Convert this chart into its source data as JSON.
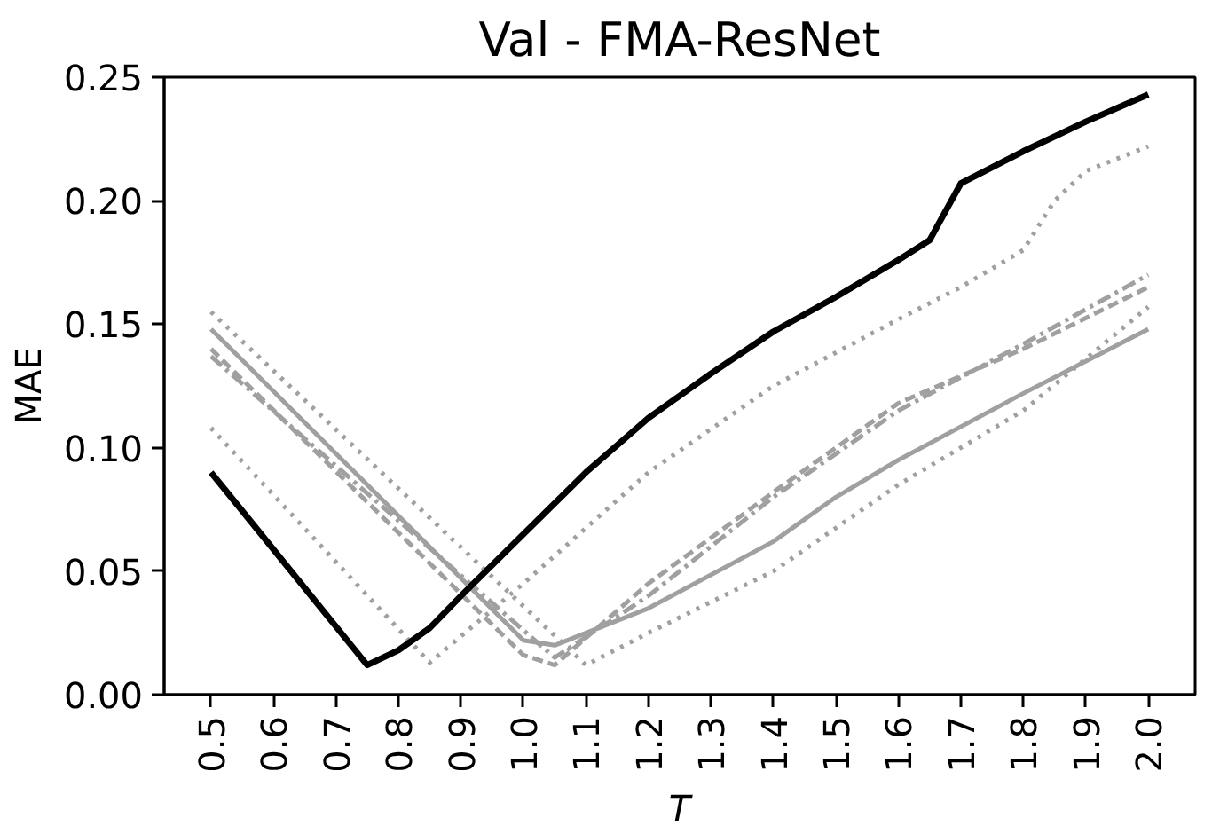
{
  "chart_data": {
    "type": "line",
    "title": "Val - FMA-ResNet",
    "xlabel": "T",
    "ylabel": "MAE",
    "xlim": [
      0.425,
      2.075
    ],
    "xticks": [
      {
        "value": 0.5,
        "label": "0.5"
      },
      {
        "value": 0.6,
        "label": "0.6"
      },
      {
        "value": 0.7,
        "label": "0.7"
      },
      {
        "value": 0.8,
        "label": "0.8"
      },
      {
        "value": 0.9,
        "label": "0.9"
      },
      {
        "value": 1.0,
        "label": "1.0"
      },
      {
        "value": 1.1,
        "label": "1.1"
      },
      {
        "value": 1.2,
        "label": "1.2"
      },
      {
        "value": 1.3,
        "label": "1.3"
      },
      {
        "value": 1.4,
        "label": "1.4"
      },
      {
        "value": 1.5,
        "label": "1.5"
      },
      {
        "value": 1.6,
        "label": "1.6"
      },
      {
        "value": 1.7,
        "label": "1.7"
      },
      {
        "value": 1.8,
        "label": "1.8"
      },
      {
        "value": 1.9,
        "label": "1.9"
      },
      {
        "value": 2.0,
        "label": "2.0"
      }
    ],
    "ylim": [
      0,
      0.25
    ],
    "yticks": [
      {
        "value": 0,
        "label": "0.00"
      },
      {
        "value": 0.05,
        "label": "0.05"
      },
      {
        "value": 0.1,
        "label": "0.10"
      },
      {
        "value": 0.15,
        "label": "0.15"
      },
      {
        "value": 0.2,
        "label": "0.20"
      },
      {
        "value": 0.25,
        "label": "0.25"
      }
    ],
    "grid": false,
    "series": [
      {
        "color": "#a0a0a0",
        "line_style": "dotted",
        "x": [
          0.5,
          0.85,
          1.0,
          1.2,
          1.4,
          1.6,
          1.7,
          1.8,
          1.85,
          1.9,
          2.0
        ],
        "values": [
          0.108,
          0.013,
          0.045,
          0.09,
          0.125,
          0.152,
          0.165,
          0.18,
          0.2,
          0.212,
          0.222
        ]
      },
      {
        "color": "#a0a0a0",
        "line_style": "dotted",
        "x": [
          0.5,
          1.1,
          1.2,
          1.4,
          1.6,
          1.8,
          2.0
        ],
        "values": [
          0.155,
          0.012,
          0.025,
          0.05,
          0.085,
          0.115,
          0.157
        ]
      },
      {
        "color": "#a0a0a0",
        "line_style": "solid",
        "x": [
          0.5,
          1.0,
          1.05,
          1.2,
          1.4,
          1.5,
          1.6,
          1.8,
          2.0
        ],
        "values": [
          0.148,
          0.022,
          0.02,
          0.035,
          0.062,
          0.08,
          0.095,
          0.122,
          0.148
        ]
      },
      {
        "color": "#a0a0a0",
        "line_style": "dashed",
        "x": [
          0.5,
          1.0,
          1.05,
          1.2,
          1.4,
          1.6,
          1.8,
          2.0
        ],
        "values": [
          0.14,
          0.016,
          0.012,
          0.045,
          0.082,
          0.118,
          0.14,
          0.165
        ]
      },
      {
        "color": "#a0a0a0",
        "line_style": "dashdot",
        "x": [
          0.5,
          1.05,
          1.2,
          1.4,
          1.6,
          1.8,
          2.0
        ],
        "values": [
          0.137,
          0.015,
          0.04,
          0.08,
          0.115,
          0.142,
          0.17
        ]
      },
      {
        "color": "#000000",
        "line_style": "solid",
        "x": [
          0.5,
          0.75,
          0.8,
          0.85,
          0.9,
          1.0,
          1.1,
          1.2,
          1.3,
          1.4,
          1.5,
          1.6,
          1.65,
          1.7,
          1.8,
          1.9,
          2.0
        ],
        "values": [
          0.09,
          0.012,
          0.018,
          0.027,
          0.04,
          0.065,
          0.09,
          0.112,
          0.13,
          0.147,
          0.161,
          0.176,
          0.184,
          0.207,
          0.22,
          0.232,
          0.243
        ]
      }
    ]
  }
}
